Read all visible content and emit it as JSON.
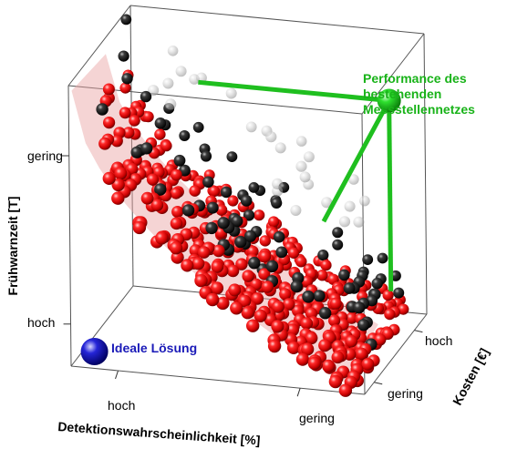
{
  "chart_data": {
    "type": "scatter",
    "dimensions": 3,
    "axes": {
      "x": {
        "label": "Detektionswahrscheinlichkeit [%]",
        "ticks": [
          "hoch",
          "gering"
        ]
      },
      "y": {
        "label": "Frühwarnzeit [T]",
        "ticks": [
          "gering",
          "hoch"
        ]
      },
      "z": {
        "label": "Kosten [€]",
        "ticks": [
          "hoch",
          "gering"
        ]
      }
    },
    "series": [
      {
        "name": "",
        "color": "#e41a1a",
        "style": "red spheres on Pareto surface",
        "count": 360
      },
      {
        "name": "",
        "color": "#141414",
        "style": "dark spheres",
        "count": 80
      },
      {
        "name": "",
        "color": "#b8b8b8",
        "style": "faded grey spheres behind",
        "count": 26
      }
    ],
    "annotations": {
      "existing_network": "Performance des bestehenden Messstellennetzes",
      "existing_network_lines": [
        "Performance des",
        "bestehenden",
        "Messstellennetzes"
      ],
      "ideal_solution": "Ideale Lösung"
    },
    "colors": {
      "existing_network": "#19b319",
      "ideal_solution": "#1a1ab8",
      "surface": "#e8a0a0"
    },
    "grid": false
  }
}
